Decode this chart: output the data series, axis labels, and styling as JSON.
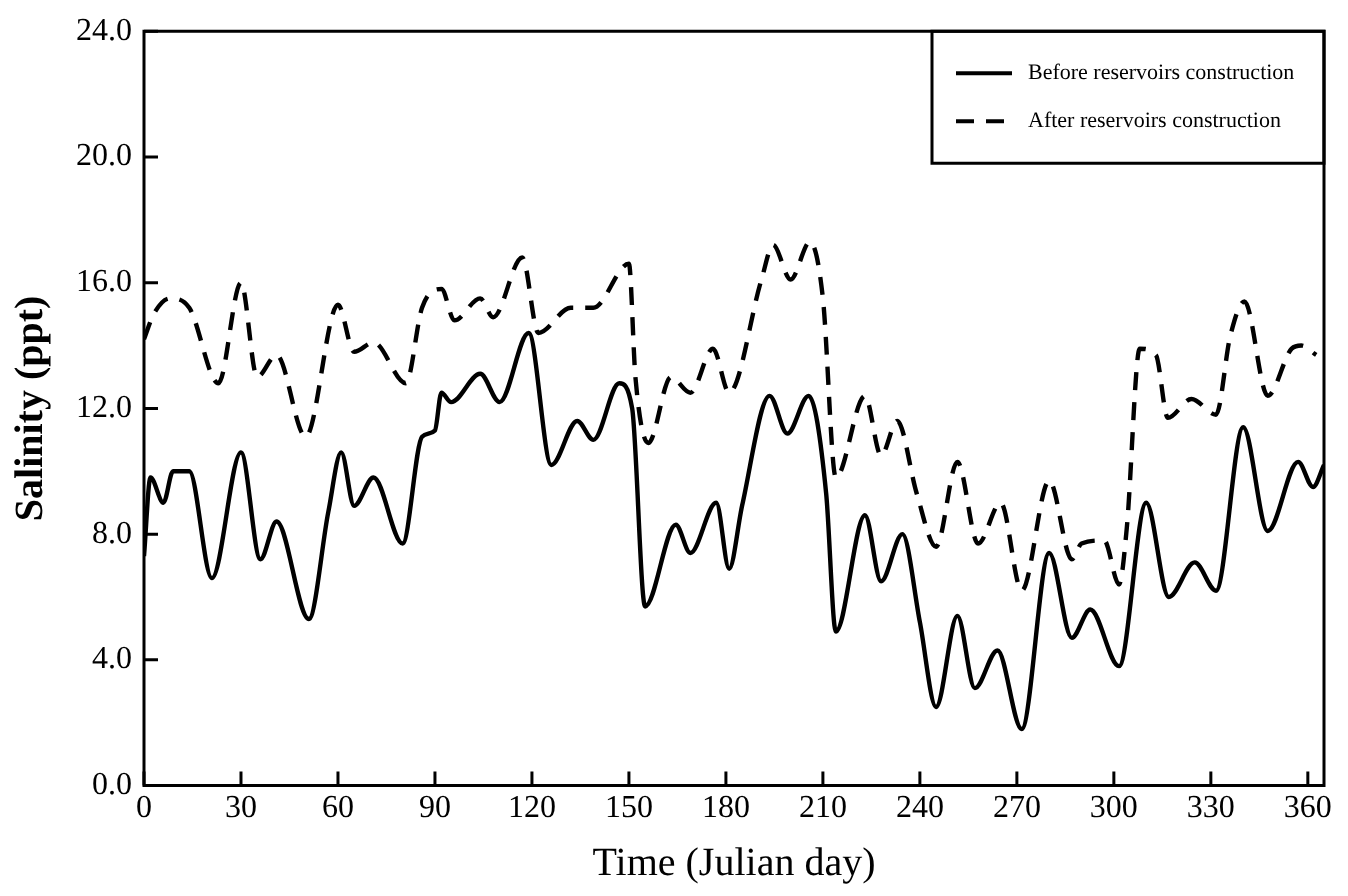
{
  "chart_data": {
    "type": "line",
    "xlabel": "Time (Julian day)",
    "ylabel": "Salinity (ppt)",
    "legend": "top right",
    "xlim": [
      0,
      365
    ],
    "xticks": [
      0,
      30,
      60,
      90,
      120,
      150,
      180,
      210,
      240,
      270,
      300,
      330,
      360
    ],
    "ylim": [
      0,
      24
    ],
    "yticks": [
      {
        "value": 0,
        "label": "0.0"
      },
      {
        "value": 4,
        "label": "4.0"
      },
      {
        "value": 8,
        "label": "8.0"
      },
      {
        "value": 12,
        "label": "12.0"
      },
      {
        "value": 16,
        "label": "16.0"
      },
      {
        "value": 20,
        "label": "20.0"
      },
      {
        "value": 24,
        "label": "24.0"
      }
    ],
    "series": [
      {
        "name": "Before reservoirs construction",
        "color": "#000000",
        "line_style": "solid",
        "x": [
          0,
          2,
          6,
          9,
          14,
          21,
          30,
          36,
          41,
          51,
          57,
          61,
          65,
          71,
          80,
          86,
          90,
          92,
          95,
          104,
          110,
          119,
          126,
          134,
          139,
          147,
          151,
          155,
          164.5,
          169,
          177,
          181,
          185,
          193.5,
          199,
          205.6,
          211,
          214,
          223,
          228,
          234.6,
          240,
          245,
          251.6,
          257,
          264,
          271.5,
          280,
          287,
          292.7,
          301.6,
          310,
          317,
          325,
          331.6,
          340,
          347.6,
          357,
          361.6,
          365
        ],
        "values": [
          7.3,
          9.8,
          9.0,
          10.0,
          10.0,
          6.6,
          10.6,
          7.2,
          8.4,
          5.3,
          8.7,
          10.6,
          8.9,
          9.8,
          7.7,
          11.1,
          11.3,
          12.5,
          12.2,
          13.1,
          12.2,
          14.4,
          10.2,
          11.6,
          11.0,
          12.8,
          12.0,
          5.7,
          8.3,
          7.4,
          9.0,
          6.9,
          8.9,
          12.4,
          11.2,
          12.4,
          9.3,
          4.9,
          8.6,
          6.5,
          8.0,
          5.2,
          2.5,
          5.4,
          3.1,
          4.3,
          1.8,
          7.4,
          4.7,
          5.6,
          3.8,
          9.0,
          6.0,
          7.1,
          6.2,
          11.4,
          8.1,
          10.3,
          9.5,
          10.2
        ]
      },
      {
        "name": "After reservoirs construction",
        "color": "#000000",
        "line_style": "dashed",
        "x": [
          0,
          3,
          8,
          14,
          23,
          30,
          35,
          41,
          50,
          60,
          65,
          71,
          81,
          86,
          92,
          96,
          104,
          108,
          117,
          122,
          132,
          139,
          150,
          152,
          156,
          163,
          169,
          176,
          181,
          191,
          194.6,
          200,
          206,
          210,
          214,
          223,
          228,
          233,
          239,
          245,
          251.6,
          258,
          265,
          271.5,
          280,
          287,
          290,
          297,
          301.6,
          304,
          308,
          313,
          316.7,
          324,
          331.6,
          336,
          340.4,
          347.6,
          355,
          358,
          362.6
        ],
        "values": [
          14.2,
          15.0,
          15.5,
          15.2,
          12.8,
          16.0,
          13.0,
          13.7,
          11.1,
          15.3,
          13.8,
          14.1,
          12.8,
          15.2,
          15.8,
          14.8,
          15.5,
          14.9,
          16.8,
          14.4,
          15.2,
          15.2,
          16.6,
          13.0,
          10.9,
          13.0,
          12.5,
          13.9,
          12.5,
          16.1,
          17.2,
          16.1,
          17.3,
          15.5,
          9.8,
          12.4,
          10.5,
          11.6,
          9.3,
          7.6,
          10.3,
          7.7,
          9.0,
          6.2,
          9.7,
          7.2,
          7.7,
          7.8,
          6.4,
          8.2,
          13.9,
          13.7,
          11.7,
          12.3,
          11.8,
          14.3,
          15.4,
          12.4,
          13.9,
          14.0,
          13.7
        ]
      }
    ]
  }
}
